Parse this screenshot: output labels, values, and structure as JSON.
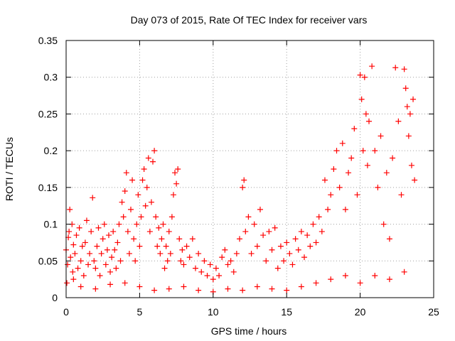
{
  "chart_data": {
    "type": "scatter",
    "title": "Day 073 of 2015, Rate Of TEC Index for receiver vars",
    "xlabel": "GPS time / hours",
    "ylabel": "ROTI / TECUs",
    "xlim": [
      0,
      25
    ],
    "ylim": [
      0,
      0.35
    ],
    "xticks": [
      0,
      5,
      10,
      15,
      20,
      25
    ],
    "yticks": [
      0,
      0.05,
      0.1,
      0.15,
      0.2,
      0.25,
      0.3,
      0.35
    ],
    "xtick_labels": [
      "0",
      "5",
      "10",
      "15",
      "20",
      "25"
    ],
    "ytick_labels": [
      "0",
      "0.05",
      "0.1",
      "0.15",
      "0.2",
      "0.25",
      "0.3",
      "0.35"
    ],
    "grid": true,
    "marker": "+",
    "marker_color": "#ff0000",
    "series": [
      {
        "name": "ROTI",
        "points": [
          [
            0.0,
            0.065
          ],
          [
            0.1,
            0.045
          ],
          [
            0.15,
            0.082
          ],
          [
            0.2,
            0.09
          ],
          [
            0.25,
            0.12
          ],
          [
            0.3,
            0.055
          ],
          [
            0.4,
            0.1
          ],
          [
            0.45,
            0.035
          ],
          [
            0.5,
            0.072
          ],
          [
            0.6,
            0.06
          ],
          [
            0.7,
            0.085
          ],
          [
            0.8,
            0.04
          ],
          [
            0.9,
            0.095
          ],
          [
            1.0,
            0.05
          ],
          [
            1.1,
            0.07
          ],
          [
            1.2,
            0.03
          ],
          [
            1.3,
            0.075
          ],
          [
            1.4,
            0.105
          ],
          [
            1.5,
            0.045
          ],
          [
            1.6,
            0.06
          ],
          [
            1.7,
            0.09
          ],
          [
            1.8,
            0.136
          ],
          [
            1.9,
            0.05
          ],
          [
            2.0,
            0.04
          ],
          [
            2.1,
            0.07
          ],
          [
            2.2,
            0.095
          ],
          [
            2.3,
            0.03
          ],
          [
            2.4,
            0.06
          ],
          [
            2.5,
            0.08
          ],
          [
            2.6,
            0.1
          ],
          [
            2.7,
            0.045
          ],
          [
            2.8,
            0.065
          ],
          [
            2.9,
            0.085
          ],
          [
            3.0,
            0.035
          ],
          [
            3.1,
            0.055
          ],
          [
            3.2,
            0.09
          ],
          [
            3.3,
            0.065
          ],
          [
            3.4,
            0.04
          ],
          [
            3.5,
            0.075
          ],
          [
            3.6,
            0.1
          ],
          [
            3.7,
            0.05
          ],
          [
            3.8,
            0.13
          ],
          [
            3.9,
            0.11
          ],
          [
            4.0,
            0.145
          ],
          [
            4.1,
            0.17
          ],
          [
            4.2,
            0.09
          ],
          [
            4.3,
            0.06
          ],
          [
            4.4,
            0.12
          ],
          [
            4.5,
            0.16
          ],
          [
            4.6,
            0.08
          ],
          [
            4.7,
            0.05
          ],
          [
            4.8,
            0.1
          ],
          [
            4.9,
            0.14
          ],
          [
            5.0,
            0.07
          ],
          [
            5.1,
            0.11
          ],
          [
            5.2,
            0.16
          ],
          [
            5.3,
            0.175
          ],
          [
            5.4,
            0.125
          ],
          [
            5.5,
            0.15
          ],
          [
            5.6,
            0.19
          ],
          [
            5.7,
            0.09
          ],
          [
            5.8,
            0.13
          ],
          [
            5.9,
            0.185
          ],
          [
            6.0,
            0.2
          ],
          [
            6.1,
            0.11
          ],
          [
            6.2,
            0.07
          ],
          [
            6.3,
            0.095
          ],
          [
            6.4,
            0.06
          ],
          [
            6.5,
            0.08
          ],
          [
            6.6,
            0.1
          ],
          [
            6.7,
            0.04
          ],
          [
            6.8,
            0.07
          ],
          [
            6.9,
            0.05
          ],
          [
            7.0,
            0.09
          ],
          [
            7.1,
            0.06
          ],
          [
            7.2,
            0.11
          ],
          [
            7.3,
            0.14
          ],
          [
            7.4,
            0.17
          ],
          [
            7.5,
            0.155
          ],
          [
            7.6,
            0.175
          ],
          [
            7.7,
            0.08
          ],
          [
            7.8,
            0.05
          ],
          [
            7.9,
            0.065
          ],
          [
            8.0,
            0.045
          ],
          [
            8.2,
            0.07
          ],
          [
            8.4,
            0.055
          ],
          [
            8.6,
            0.08
          ],
          [
            8.8,
            0.04
          ],
          [
            9.0,
            0.06
          ],
          [
            9.2,
            0.035
          ],
          [
            9.4,
            0.05
          ],
          [
            9.6,
            0.03
          ],
          [
            9.8,
            0.045
          ],
          [
            10.0,
            0.025
          ],
          [
            10.2,
            0.04
          ],
          [
            10.4,
            0.03
          ],
          [
            10.6,
            0.055
          ],
          [
            10.8,
            0.065
          ],
          [
            11.0,
            0.045
          ],
          [
            11.2,
            0.05
          ],
          [
            11.4,
            0.035
          ],
          [
            11.6,
            0.06
          ],
          [
            11.8,
            0.08
          ],
          [
            12.0,
            0.15
          ],
          [
            12.1,
            0.16
          ],
          [
            12.2,
            0.09
          ],
          [
            12.4,
            0.11
          ],
          [
            12.6,
            0.06
          ],
          [
            12.8,
            0.1
          ],
          [
            13.0,
            0.07
          ],
          [
            13.2,
            0.12
          ],
          [
            13.4,
            0.085
          ],
          [
            13.6,
            0.05
          ],
          [
            13.8,
            0.09
          ],
          [
            14.0,
            0.065
          ],
          [
            14.2,
            0.095
          ],
          [
            14.4,
            0.04
          ],
          [
            14.6,
            0.07
          ],
          [
            14.8,
            0.05
          ],
          [
            15.0,
            0.075
          ],
          [
            15.2,
            0.06
          ],
          [
            15.4,
            0.045
          ],
          [
            15.6,
            0.08
          ],
          [
            15.8,
            0.065
          ],
          [
            16.0,
            0.09
          ],
          [
            16.2,
            0.055
          ],
          [
            16.4,
            0.085
          ],
          [
            16.6,
            0.07
          ],
          [
            16.8,
            0.1
          ],
          [
            17.0,
            0.075
          ],
          [
            17.2,
            0.11
          ],
          [
            17.4,
            0.09
          ],
          [
            17.6,
            0.16
          ],
          [
            17.8,
            0.12
          ],
          [
            18.0,
            0.14
          ],
          [
            18.2,
            0.175
          ],
          [
            18.4,
            0.2
          ],
          [
            18.6,
            0.15
          ],
          [
            18.8,
            0.21
          ],
          [
            19.0,
            0.12
          ],
          [
            19.2,
            0.17
          ],
          [
            19.4,
            0.19
          ],
          [
            19.6,
            0.23
          ],
          [
            19.8,
            0.14
          ],
          [
            20.0,
            0.303
          ],
          [
            20.1,
            0.27
          ],
          [
            20.2,
            0.2
          ],
          [
            20.3,
            0.3
          ],
          [
            20.4,
            0.25
          ],
          [
            20.5,
            0.18
          ],
          [
            20.6,
            0.24
          ],
          [
            20.8,
            0.315
          ],
          [
            21.0,
            0.2
          ],
          [
            21.2,
            0.15
          ],
          [
            21.4,
            0.22
          ],
          [
            21.6,
            0.1
          ],
          [
            21.8,
            0.17
          ],
          [
            22.0,
            0.08
          ],
          [
            22.2,
            0.19
          ],
          [
            22.4,
            0.313
          ],
          [
            22.6,
            0.24
          ],
          [
            22.8,
            0.14
          ],
          [
            23.0,
            0.311
          ],
          [
            23.1,
            0.285
          ],
          [
            23.2,
            0.26
          ],
          [
            23.3,
            0.22
          ],
          [
            23.4,
            0.25
          ],
          [
            23.5,
            0.18
          ],
          [
            23.6,
            0.27
          ],
          [
            23.7,
            0.16
          ],
          [
            0.05,
            0.02
          ],
          [
            0.5,
            0.025
          ],
          [
            1.0,
            0.015
          ],
          [
            2.0,
            0.012
          ],
          [
            3.0,
            0.018
          ],
          [
            4.0,
            0.02
          ],
          [
            5.0,
            0.015
          ],
          [
            6.0,
            0.01
          ],
          [
            7.0,
            0.012
          ],
          [
            8.0,
            0.015
          ],
          [
            9.0,
            0.01
          ],
          [
            10.0,
            0.008
          ],
          [
            11.0,
            0.012
          ],
          [
            12.0,
            0.01
          ],
          [
            13.0,
            0.015
          ],
          [
            14.0,
            0.012
          ],
          [
            15.0,
            0.01
          ],
          [
            16.0,
            0.015
          ],
          [
            17.0,
            0.02
          ],
          [
            18.0,
            0.025
          ],
          [
            19.0,
            0.03
          ],
          [
            20.0,
            0.02
          ],
          [
            21.0,
            0.03
          ],
          [
            22.0,
            0.025
          ],
          [
            23.0,
            0.035
          ]
        ]
      }
    ]
  }
}
